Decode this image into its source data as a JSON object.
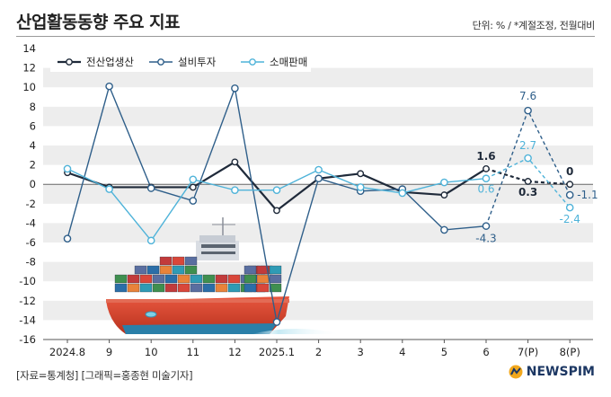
{
  "title": "산업활동동향 주요 지표",
  "unit_note": "단위: % / *계절조정, 전월대비",
  "footer": "[자료=통계청] [그래픽=홍종현 미술기자]",
  "brand": "NEWSPIM",
  "chart_data": {
    "type": "line",
    "categories": [
      "2024.8",
      "9",
      "10",
      "11",
      "12",
      "2025.1",
      "2",
      "3",
      "4",
      "5",
      "6",
      "7(P)",
      "8(P)"
    ],
    "ylim": [
      -16,
      14
    ],
    "yticks": [
      14,
      12,
      10,
      8,
      6,
      4,
      2,
      0,
      -2,
      -4,
      -6,
      -8,
      -10,
      -12,
      -14,
      -16
    ],
    "grid": true,
    "legend_position": "top-left",
    "provisional_from_index": 11,
    "series": [
      {
        "name": "전산업생산",
        "color": "#1f2a3a",
        "values": [
          1.2,
          -0.3,
          -0.3,
          -0.3,
          2.3,
          -2.7,
          0.6,
          1.1,
          -0.8,
          -1.1,
          1.6,
          0.3,
          0
        ]
      },
      {
        "name": "설비투자",
        "color": "#2f5f8a",
        "values": [
          -5.6,
          10.1,
          -0.4,
          -1.7,
          9.9,
          -14.2,
          0.6,
          -0.7,
          -0.5,
          -4.7,
          -4.3,
          7.6,
          -1.1
        ]
      },
      {
        "name": "소매판매",
        "color": "#4fb3d9",
        "values": [
          1.6,
          -0.5,
          -5.8,
          0.5,
          -0.6,
          -0.6,
          1.5,
          -0.3,
          -0.9,
          0.2,
          0.6,
          2.7,
          -2.4
        ]
      }
    ],
    "data_labels": [
      {
        "series": 0,
        "index": 10,
        "text": "1.6"
      },
      {
        "series": 0,
        "index": 11,
        "text": "0.3"
      },
      {
        "series": 0,
        "index": 12,
        "text": "0"
      },
      {
        "series": 1,
        "index": 10,
        "text": "-4.3"
      },
      {
        "series": 1,
        "index": 11,
        "text": "7.6"
      },
      {
        "series": 1,
        "index": 12,
        "text": "-1.1"
      },
      {
        "series": 2,
        "index": 10,
        "text": "0.6"
      },
      {
        "series": 2,
        "index": 11,
        "text": "2.7"
      },
      {
        "series": 2,
        "index": 12,
        "text": "-2.4"
      }
    ]
  }
}
